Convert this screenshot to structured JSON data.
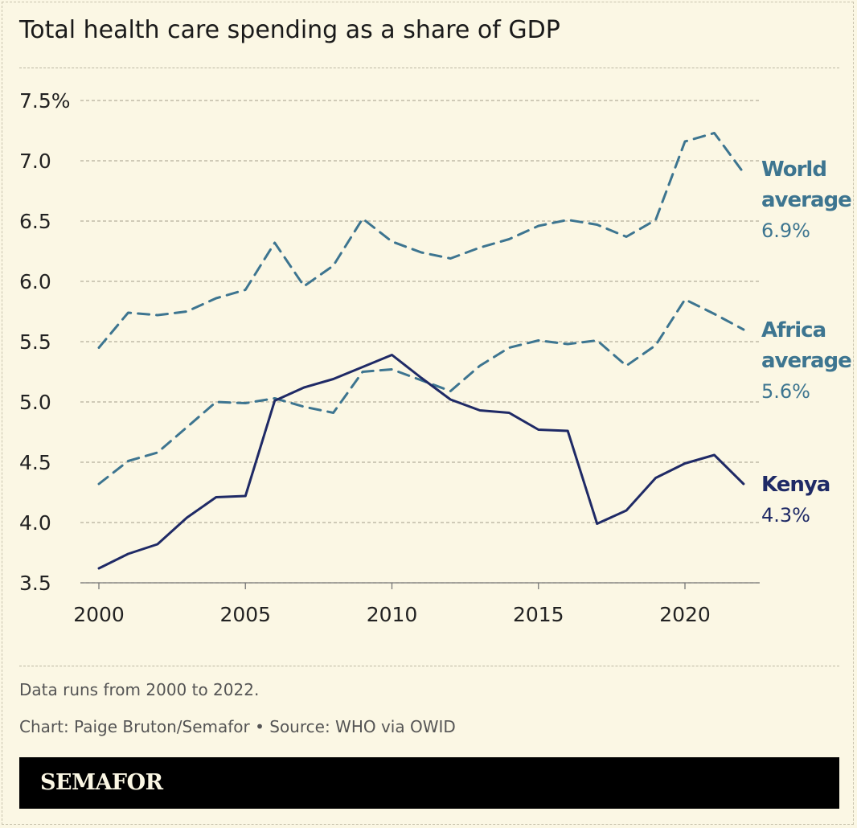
{
  "title": "Total health care spending as a share of GDP",
  "notes": [
    "Data runs from 2000 to 2022.",
    "Chart: Paige Bruton/Semafor • Source: WHO via OWID"
  ],
  "logo": "SEMAFOR",
  "chart_data": {
    "type": "line",
    "title": "Total health care spending as a share of GDP",
    "x": [
      2000,
      2001,
      2002,
      2003,
      2004,
      2005,
      2006,
      2007,
      2008,
      2009,
      2010,
      2011,
      2012,
      2013,
      2014,
      2015,
      2016,
      2017,
      2018,
      2019,
      2020,
      2021,
      2022
    ],
    "xticks": [
      "2000",
      "2005",
      "2010",
      "2015",
      "2020"
    ],
    "xtick_values": [
      2000,
      2005,
      2010,
      2015,
      2020
    ],
    "yticks": [
      "7.5%",
      "7.0",
      "6.5",
      "6.0",
      "5.5",
      "5.0",
      "4.5",
      "4.0",
      "3.5"
    ],
    "ytick_values": [
      7.5,
      7.0,
      6.5,
      6.0,
      5.5,
      5.0,
      4.5,
      4.0,
      3.5
    ],
    "ylim": [
      3.5,
      7.5
    ],
    "xlim": [
      2000,
      2022
    ],
    "grid": true,
    "series": [
      {
        "name": "World average",
        "label_lines": [
          "World",
          "average"
        ],
        "end_label": "6.9%",
        "color": "#3d7590",
        "dashed": true,
        "values": [
          5.45,
          5.74,
          5.72,
          5.75,
          5.86,
          5.93,
          6.32,
          5.96,
          6.13,
          6.52,
          6.33,
          6.24,
          6.19,
          6.28,
          6.35,
          6.46,
          6.51,
          6.47,
          6.37,
          6.51,
          7.16,
          7.23,
          6.9
        ]
      },
      {
        "name": "Africa average",
        "label_lines": [
          "Africa",
          "average"
        ],
        "end_label": "5.6%",
        "color": "#3d7590",
        "dashed": true,
        "values": [
          4.32,
          4.51,
          4.58,
          4.79,
          5.0,
          4.99,
          5.03,
          4.96,
          4.91,
          5.25,
          5.27,
          5.18,
          5.09,
          5.3,
          5.45,
          5.51,
          5.48,
          5.51,
          5.3,
          5.47,
          5.85,
          5.73,
          5.6
        ]
      },
      {
        "name": "Kenya",
        "label_lines": [
          "Kenya"
        ],
        "end_label": "4.3%",
        "color": "#1f2a66",
        "dashed": false,
        "values": [
          3.62,
          3.74,
          3.82,
          4.04,
          4.21,
          4.22,
          5.01,
          5.12,
          5.19,
          5.29,
          5.39,
          5.2,
          5.02,
          4.93,
          4.91,
          4.77,
          4.76,
          3.99,
          4.1,
          4.37,
          4.49,
          4.56,
          4.32
        ]
      }
    ]
  }
}
